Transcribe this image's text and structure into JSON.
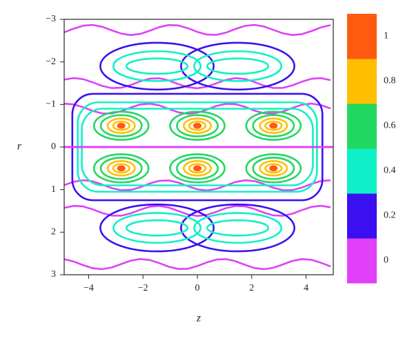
{
  "chart_data": {
    "type": "contour",
    "x_label": "z",
    "y_label": "r",
    "xlim": [
      -4.9,
      5
    ],
    "ylim": [
      -3,
      3
    ],
    "xticks": [
      {
        "value": -4,
        "label": "−4"
      },
      {
        "value": -2,
        "label": "−2"
      },
      0,
      2,
      4
    ],
    "yticks": [
      {
        "value": -3,
        "label": "−3"
      },
      {
        "value": -2,
        "label": "−2"
      },
      {
        "value": -1,
        "label": "−1"
      },
      0,
      1,
      2,
      3
    ],
    "colorbar": {
      "clim": [
        -0.1,
        1.1
      ],
      "ticks": [
        0,
        0.2,
        0.4,
        0.6,
        0.8,
        1
      ],
      "colors": [
        "#e040f8",
        "#3a10f0",
        "#10f0c8",
        "#20d860",
        "#ffbf00",
        "#ff5a10"
      ]
    }
  }
}
